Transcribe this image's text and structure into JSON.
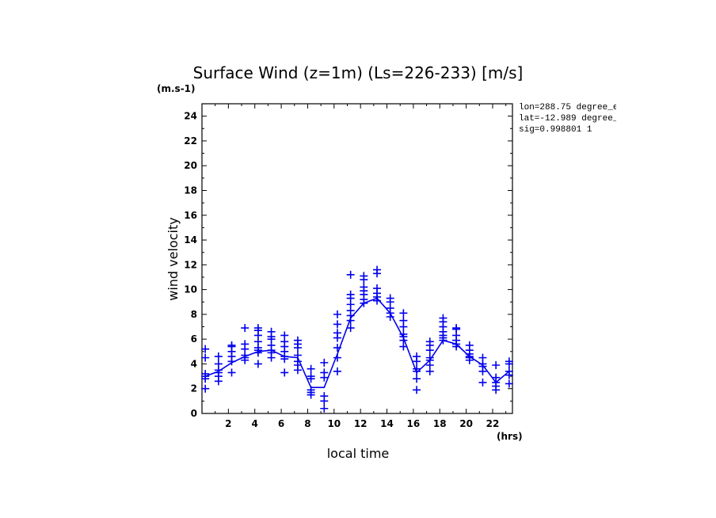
{
  "chart_data": {
    "type": "scatter",
    "title": "Surface Wind (z=1m) (Ls=226-233) [m/s]",
    "y_unit_label": "(m.s-1)",
    "x_unit_label": "(hrs)",
    "xlabel": "local time",
    "ylabel": "wind velocity",
    "xlim": [
      0,
      23.5
    ],
    "ylim": [
      0,
      25
    ],
    "xticks": [
      2,
      4,
      6,
      8,
      10,
      12,
      14,
      16,
      18,
      20,
      22
    ],
    "yticks": [
      0,
      2,
      4,
      6,
      8,
      10,
      12,
      14,
      16,
      18,
      20,
      22,
      24
    ],
    "info": [
      "lon=288.75 degree_e",
      "lat=-12.989 degree_",
      "sig=0.998801 1"
    ],
    "color": "#0000ee",
    "series": [
      {
        "mode": "line",
        "x": [
          0.25,
          1.25,
          2.25,
          3.25,
          4.25,
          5.25,
          6.25,
          7.25,
          8.25,
          9.25,
          10.25,
          11.25,
          12.25,
          13.25,
          14.25,
          15.25,
          16.25,
          17.25,
          18.25,
          19.25,
          20.25,
          21.25,
          22.25,
          23.25
        ],
        "y": [
          3.0,
          3.4,
          4.1,
          4.6,
          5.0,
          5.1,
          4.6,
          4.5,
          2.1,
          2.1,
          4.8,
          7.7,
          8.9,
          9.3,
          8.1,
          6.1,
          3.3,
          4.3,
          5.9,
          5.6,
          4.6,
          3.9,
          2.5,
          3.4
        ]
      },
      {
        "mode": "markers",
        "marker": "+",
        "points": [
          {
            "x": 0.25,
            "y": [
              2.0,
              2.8,
              3.0,
              3.2,
              4.5,
              5.2
            ]
          },
          {
            "x": 1.25,
            "y": [
              2.6,
              3.0,
              3.3,
              3.5,
              4.0,
              4.6
            ]
          },
          {
            "x": 2.25,
            "y": [
              3.3,
              4.2,
              4.6,
              5.0,
              5.4,
              5.5
            ]
          },
          {
            "x": 3.25,
            "y": [
              4.3,
              4.5,
              4.7,
              5.2,
              5.6,
              6.9
            ]
          },
          {
            "x": 4.25,
            "y": [
              4.0,
              4.9,
              5.1,
              5.3,
              5.8,
              6.3,
              6.7,
              6.9
            ]
          },
          {
            "x": 5.25,
            "y": [
              4.5,
              4.9,
              5.1,
              5.5,
              6.0,
              6.2,
              6.6
            ]
          },
          {
            "x": 6.25,
            "y": [
              3.3,
              4.4,
              4.6,
              5.0,
              5.4,
              5.8,
              6.3
            ]
          },
          {
            "x": 7.25,
            "y": [
              3.5,
              3.9,
              4.2,
              4.7,
              5.3,
              5.6,
              5.9
            ]
          },
          {
            "x": 8.25,
            "y": [
              1.5,
              1.7,
              1.9,
              2.8,
              3.0,
              3.6
            ]
          },
          {
            "x": 9.25,
            "y": [
              0.4,
              1.0,
              1.4,
              2.9,
              3.3,
              4.1
            ]
          },
          {
            "x": 10.25,
            "y": [
              3.4,
              4.5,
              5.3,
              6.1,
              6.5,
              7.2,
              8.0
            ]
          },
          {
            "x": 11.25,
            "y": [
              6.9,
              7.5,
              7.9,
              8.3,
              8.8,
              9.3,
              9.6,
              11.2
            ]
          },
          {
            "x": 12.25,
            "y": [
              8.9,
              9.2,
              9.6,
              9.9,
              10.2,
              10.8,
              11.1
            ]
          },
          {
            "x": 13.25,
            "y": [
              9.1,
              9.4,
              9.7,
              10.1,
              11.3,
              11.6
            ]
          },
          {
            "x": 14.25,
            "y": [
              7.8,
              8.1,
              8.5,
              9.0,
              9.3
            ]
          },
          {
            "x": 15.25,
            "y": [
              5.4,
              5.9,
              6.2,
              6.4,
              7.0,
              7.5,
              8.1
            ]
          },
          {
            "x": 16.25,
            "y": [
              1.9,
              2.8,
              3.4,
              3.6,
              4.2,
              4.6
            ]
          },
          {
            "x": 17.25,
            "y": [
              3.4,
              3.9,
              4.3,
              4.5,
              5.1,
              5.5,
              5.8
            ]
          },
          {
            "x": 18.25,
            "y": [
              5.9,
              6.1,
              6.3,
              6.6,
              7.0,
              7.4,
              7.7
            ]
          },
          {
            "x": 19.25,
            "y": [
              5.4,
              5.6,
              5.9,
              6.3,
              6.8,
              6.9
            ]
          },
          {
            "x": 20.25,
            "y": [
              4.3,
              4.5,
              4.6,
              4.8,
              5.1,
              5.5
            ]
          },
          {
            "x": 21.25,
            "y": [
              2.5,
              3.4,
              3.8,
              4.0,
              4.5
            ]
          },
          {
            "x": 22.25,
            "y": [
              1.9,
              2.2,
              2.5,
              2.9,
              3.9
            ]
          },
          {
            "x": 23.25,
            "y": [
              2.4,
              3.1,
              3.4,
              4.0,
              4.2
            ]
          }
        ]
      }
    ]
  }
}
